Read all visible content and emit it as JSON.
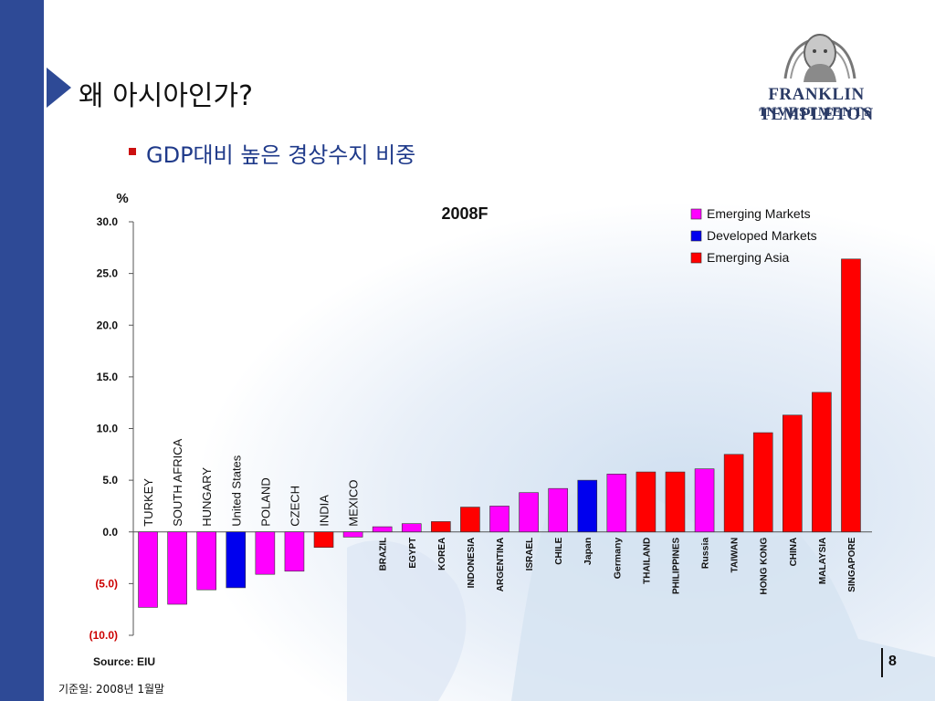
{
  "slide": {
    "title": "왜 아시아인가?",
    "bullet": "GDP대비 높은 경상수지 비중",
    "logo_line1": "FRANKLIN TEMPLETON",
    "logo_line2": "INVESTMENTS",
    "source": "Source: EIU",
    "basis_note": "기준일: 2008년 1월말",
    "page_number": "8"
  },
  "colors": {
    "emerging_markets": "#ff00ff",
    "developed_markets": "#0000ee",
    "emerging_asia": "#ff0000",
    "theme_blue": "#2e4a96"
  },
  "chart_data": {
    "type": "bar",
    "title": "2008F",
    "ylabel": "%",
    "ylim": [
      -10,
      30
    ],
    "yticks": [
      30,
      25,
      20,
      15,
      10,
      5,
      0,
      -5,
      -10
    ],
    "ytick_labels": [
      "30.0",
      "25.0",
      "20.0",
      "15.0",
      "10.0",
      "5.0",
      "0.0",
      "(5.0)",
      "(10.0)"
    ],
    "legend_position": "top-right",
    "legend": [
      {
        "name": "Emerging Markets",
        "color_key": "emerging_markets"
      },
      {
        "name": "Developed Markets",
        "color_key": "developed_markets"
      },
      {
        "name": "Emerging Asia",
        "color_key": "emerging_asia"
      }
    ],
    "categories": [
      "TURKEY",
      "SOUTH AFRICA",
      "HUNGARY",
      "United States",
      "POLAND",
      "CZECH",
      "INDIA",
      "MEXICO",
      "BRAZIL",
      "EGYPT",
      "KOREA",
      "INDONESIA",
      "ARGENTINA",
      "ISRAEL",
      "CHILE",
      "Japan",
      "Germany",
      "THAILAND",
      "PHILIPPINES",
      "Russia",
      "TAIWAN",
      "HONG KONG",
      "CHINA",
      "MALAYSIA",
      "SINGAPORE"
    ],
    "values": [
      -7.3,
      -7.0,
      -5.6,
      -5.4,
      -4.1,
      -3.8,
      -1.5,
      -0.5,
      0.5,
      0.8,
      1.0,
      2.4,
      2.5,
      3.8,
      4.2,
      5.0,
      5.6,
      5.8,
      5.8,
      6.1,
      7.5,
      9.6,
      11.3,
      13.5,
      26.4
    ],
    "groups": [
      "emerging_markets",
      "emerging_markets",
      "emerging_markets",
      "developed_markets",
      "emerging_markets",
      "emerging_markets",
      "emerging_asia",
      "emerging_markets",
      "emerging_markets",
      "emerging_markets",
      "emerging_asia",
      "emerging_asia",
      "emerging_markets",
      "emerging_markets",
      "emerging_markets",
      "developed_markets",
      "emerging_markets",
      "emerging_asia",
      "emerging_asia",
      "emerging_markets",
      "emerging_asia",
      "emerging_asia",
      "emerging_asia",
      "emerging_asia",
      "emerging_asia"
    ]
  }
}
